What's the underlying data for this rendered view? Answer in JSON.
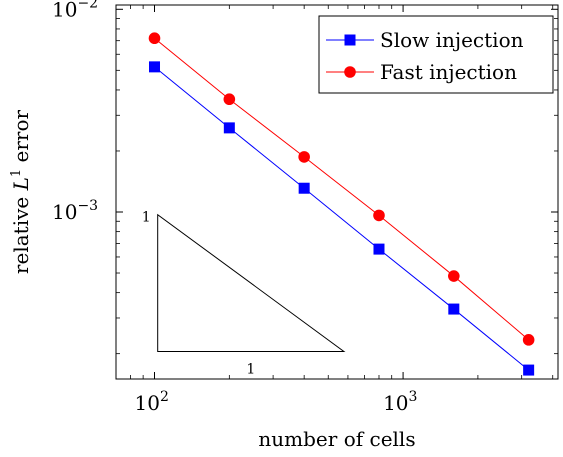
{
  "chart_data": {
    "type": "line",
    "xlabel": "number of cells",
    "ylabel": "relative L¹ error",
    "ylabel_base": "relative ",
    "ylabel_var": "L",
    "ylabel_sup": "1",
    "ylabel_tail": " error",
    "x_scale": "log",
    "y_scale": "log",
    "xlim": [
      70,
      4200
    ],
    "ylim": [
      0.00015,
      0.0105
    ],
    "grid": false,
    "legend_position": "top-right",
    "x_ticks": [
      {
        "value": 100,
        "base": "10",
        "exp": "2"
      },
      {
        "value": 1000,
        "base": "10",
        "exp": "3"
      }
    ],
    "y_ticks": [
      {
        "value": 0.01,
        "base": "10",
        "exp": "−2"
      },
      {
        "value": 0.001,
        "base": "10",
        "exp": "−3"
      }
    ],
    "series": [
      {
        "name": "Slow injection",
        "color": "#0000ff",
        "marker": "square",
        "x": [
          100,
          200,
          400,
          800,
          1600,
          3200
        ],
        "y": [
          0.0052,
          0.0026,
          0.00131,
          0.000656,
          0.000332,
          0.000166
        ]
      },
      {
        "name": "Fast injection",
        "color": "#ff0000",
        "marker": "circle",
        "x": [
          100,
          200,
          400,
          800,
          1600,
          3200
        ],
        "y": [
          0.0072,
          0.0036,
          0.00187,
          0.000962,
          0.000483,
          0.000234
        ]
      }
    ],
    "slope_triangle": {
      "vertical_label": "1",
      "horizontal_label": "1",
      "x_left": 103,
      "x_right": 578,
      "y_top": 0.00097,
      "y_bottom": 0.000205
    }
  }
}
